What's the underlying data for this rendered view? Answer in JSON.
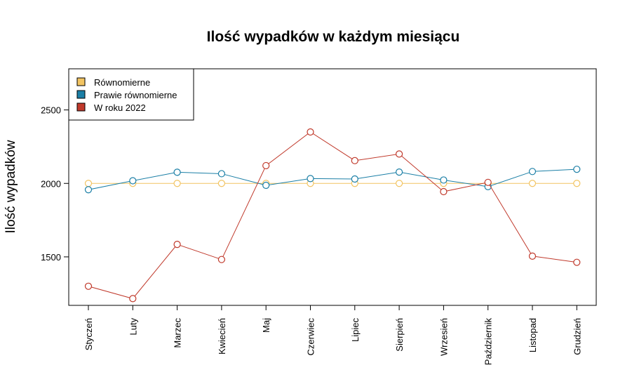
{
  "chart_data": {
    "type": "line",
    "title": "Ilość wypadków w każdym miesiącu",
    "xlabel": "",
    "ylabel": "Ilość wypadków",
    "categories": [
      "Styczeń",
      "Luty",
      "Marzec",
      "Kwiecień",
      "Maj",
      "Czerwiec",
      "Lipiec",
      "Sierpień",
      "Wrzesień",
      "Październik",
      "Listopad",
      "Grudzień"
    ],
    "ylim": [
      1170,
      2780
    ],
    "yticks": [
      1500,
      2000,
      2500
    ],
    "grid": false,
    "legend_position": "top-left",
    "series": [
      {
        "name": "Równomierne",
        "color": "#F2C462",
        "values": [
          2000,
          2000,
          2000,
          2000,
          2000,
          2000,
          2000,
          2000,
          2000,
          2000,
          2000,
          2000
        ]
      },
      {
        "name": "Prawie równomierne",
        "color": "#1B7FA6",
        "values": [
          1957,
          2018,
          2076,
          2066,
          1987,
          2033,
          2030,
          2077,
          2023,
          1978,
          2081,
          2096
        ]
      },
      {
        "name": "W roku 2022",
        "color": "#C0392B",
        "values": [
          1300,
          1216,
          1585,
          1482,
          2121,
          2350,
          2155,
          2200,
          1944,
          2007,
          1505,
          1463
        ]
      }
    ]
  }
}
